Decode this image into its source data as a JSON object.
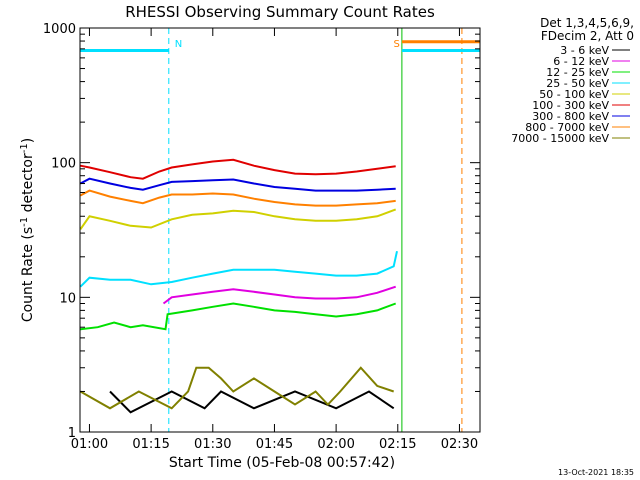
{
  "chart_data": {
    "type": "line",
    "title": "RHESSI Observing Summary Count Rates",
    "xlabel": "Start Time (05-Feb-08 00:57:42)",
    "ylabel": "Count Rate (s",
    "ylabel_sup1": "-1",
    "ylabel_mid": " detector",
    "ylabel_sup2": "-1",
    "ylabel_end": ")",
    "yscale": "log",
    "ylim": [
      1,
      1000
    ],
    "xlim_minutes": [
      57.7,
      155
    ],
    "x_ticks": [
      {
        "label": "01:00",
        "minutes": 60
      },
      {
        "label": "01:15",
        "minutes": 75
      },
      {
        "label": "01:30",
        "minutes": 90
      },
      {
        "label": "01:45",
        "minutes": 105
      },
      {
        "label": "02:00",
        "minutes": 120
      },
      {
        "label": "02:15",
        "minutes": 135
      },
      {
        "label": "02:30",
        "minutes": 150
      }
    ],
    "y_ticks": [
      {
        "label": "1",
        "value": 1
      },
      {
        "label": "10",
        "value": 10
      },
      {
        "label": "100",
        "value": 100
      },
      {
        "label": "1000",
        "value": 1000
      }
    ],
    "legend": {
      "header": [
        "Det 1,3,4,5,6,9,",
        "FDecim 2, Att 0"
      ],
      "placement": "outside-right"
    },
    "annotations": [
      {
        "text": "N",
        "minutes": 79.3,
        "color": "#00e0ff"
      },
      {
        "text": "S",
        "minutes": 132.5,
        "color": "#ff8000"
      }
    ],
    "vlines": [
      {
        "minutes": 79.3,
        "color": "#00e0ff",
        "dashed": true
      },
      {
        "minutes": 136.0,
        "color": "#00c000",
        "dashed": false
      },
      {
        "minutes": 150.6,
        "color": "#ff8000",
        "dashed": true
      }
    ],
    "flags": [
      {
        "color": "#00e0ff",
        "from": 57.7,
        "to": 79.3,
        "value": 680
      },
      {
        "color": "#ff8000",
        "from": 136.0,
        "to": 155,
        "value": 790
      },
      {
        "color": "#00e0ff",
        "from": 136.0,
        "to": 155,
        "value": 680
      }
    ],
    "series": [
      {
        "name": "3 - 6 keV",
        "color": "#000000",
        "x": [
          65,
          70,
          80,
          88,
          92,
          100,
          110,
          120,
          128,
          134
        ],
        "y": [
          2,
          1.4,
          2,
          1.5,
          2,
          1.5,
          2,
          1.5,
          2,
          1.5
        ]
      },
      {
        "name": "6 - 12 keV",
        "color": "#e000e0",
        "x": [
          78,
          80,
          85,
          90,
          95,
          100,
          105,
          110,
          115,
          120,
          125,
          130,
          134.5
        ],
        "y": [
          9,
          10,
          10.5,
          11,
          11.5,
          11,
          10.5,
          10,
          9.8,
          9.8,
          10,
          10.8,
          12
        ]
      },
      {
        "name": "12 - 25 keV",
        "color": "#00e000",
        "x": [
          57.8,
          62,
          66,
          70,
          73,
          78.5,
          79,
          85,
          90,
          95,
          100,
          105,
          110,
          115,
          120,
          125,
          130,
          134.5
        ],
        "y": [
          5.8,
          6,
          6.5,
          6,
          6.2,
          5.8,
          7.5,
          8,
          8.5,
          9,
          8.5,
          8,
          7.8,
          7.5,
          7.2,
          7.5,
          8,
          9
        ]
      },
      {
        "name": "25 - 50 keV",
        "color": "#00e0ff",
        "x": [
          57.8,
          60,
          65,
          70,
          75,
          80,
          85,
          90,
          95,
          100,
          105,
          110,
          115,
          120,
          125,
          130,
          134,
          134.8
        ],
        "y": [
          12,
          14,
          13.5,
          13.5,
          12.5,
          13,
          14,
          15,
          16,
          16,
          16,
          15.5,
          15,
          14.5,
          14.5,
          15,
          17,
          22
        ]
      },
      {
        "name": "50 - 100 keV",
        "color": "#d0d000",
        "x": [
          57.8,
          60,
          65,
          70,
          75,
          80,
          85,
          90,
          95,
          100,
          105,
          110,
          115,
          120,
          125,
          130,
          134.5
        ],
        "y": [
          32,
          40,
          37,
          34,
          33,
          38,
          41,
          42,
          44,
          43,
          40,
          38,
          37,
          37,
          38,
          40,
          45
        ]
      },
      {
        "name": "100 - 300 keV",
        "color": "#e00000",
        "x": [
          57.8,
          60,
          65,
          70,
          73,
          77,
          80,
          85,
          90,
          95,
          100,
          105,
          110,
          115,
          120,
          125,
          130,
          134.5
        ],
        "y": [
          95,
          92,
          85,
          78,
          76,
          86,
          92,
          97,
          102,
          105,
          95,
          88,
          83,
          82,
          83,
          86,
          90,
          94
        ]
      },
      {
        "name": "300 - 800 keV",
        "color": "#0000e0",
        "x": [
          57.8,
          60,
          65,
          70,
          73,
          77,
          80,
          85,
          90,
          95,
          100,
          105,
          110,
          115,
          120,
          125,
          130,
          134.5
        ],
        "y": [
          70,
          76,
          70,
          65,
          63,
          68,
          72,
          73,
          74,
          75,
          70,
          66,
          64,
          62,
          62,
          62,
          63,
          64
        ]
      },
      {
        "name": "800 - 7000 keV",
        "color": "#ff8000",
        "x": [
          57.8,
          60,
          65,
          70,
          73,
          77,
          80,
          85,
          90,
          95,
          100,
          105,
          110,
          115,
          120,
          125,
          130,
          134.5
        ],
        "y": [
          57,
          62,
          56,
          52,
          50,
          55,
          58,
          58,
          59,
          58,
          54,
          51,
          49,
          48,
          48,
          49,
          50,
          52
        ]
      },
      {
        "name": "7000 - 15000 keV",
        "color": "#808000",
        "x": [
          57.8,
          65,
          72,
          80,
          84,
          86,
          89,
          92,
          95,
          100,
          105,
          110,
          115,
          118,
          121,
          126,
          130,
          134
        ],
        "y": [
          2,
          1.5,
          2,
          1.5,
          2,
          3,
          3,
          2.5,
          2,
          2.5,
          2,
          1.6,
          2,
          1.6,
          2,
          3,
          2.2,
          2
        ]
      }
    ]
  },
  "footer": {
    "timestamp": "13-Oct-2021 18:35"
  }
}
